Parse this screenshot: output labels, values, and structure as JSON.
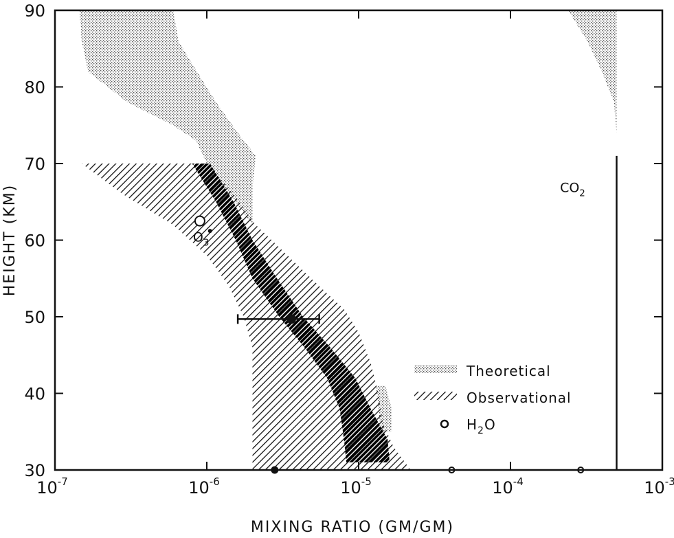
{
  "chart_data": {
    "type": "area",
    "title": "",
    "xlabel": "MIXING RATIO (GM/GM)",
    "ylabel": "HEIGHT (KM)",
    "xscale": "log",
    "xlim": [
      1e-07,
      0.001
    ],
    "ylim": [
      30,
      90
    ],
    "grid": false,
    "legend_position": "lower-right",
    "x_ticks": [
      {
        "value": 1e-07,
        "base": "10",
        "exp": "-7"
      },
      {
        "value": 1e-06,
        "base": "10",
        "exp": "-6"
      },
      {
        "value": 1e-05,
        "base": "10",
        "exp": "-5"
      },
      {
        "value": 0.0001,
        "base": "10",
        "exp": "-4"
      },
      {
        "value": 0.001,
        "base": "10",
        "exp": "-3"
      }
    ],
    "y_ticks": [
      {
        "value": 30,
        "label": "30"
      },
      {
        "value": 40,
        "label": "40"
      },
      {
        "value": 50,
        "label": "50"
      },
      {
        "value": 60,
        "label": "60"
      },
      {
        "value": 70,
        "label": "70"
      },
      {
        "value": 80,
        "label": "80"
      },
      {
        "value": 90,
        "label": "90"
      }
    ],
    "legend": [
      {
        "name": "Theoretical",
        "pattern": "dots"
      },
      {
        "name": "Observational",
        "pattern": "hatch"
      },
      {
        "name": "H2O",
        "base": "H",
        "sub": "2",
        "rest": "O",
        "marker": "open-circle"
      }
    ],
    "series": [
      {
        "name": "Theoretical",
        "kind": "band",
        "pattern": "dots",
        "left": [
          [
            90,
            1.45e-07
          ],
          [
            86,
            1.5e-07
          ],
          [
            82,
            1.65e-07
          ],
          [
            78,
            3e-07
          ],
          [
            75,
            6e-07
          ],
          [
            73,
            8.5e-07
          ],
          [
            70,
            1e-06
          ]
        ],
        "right": [
          [
            90,
            6e-07
          ],
          [
            86,
            6.5e-07
          ],
          [
            83,
            8e-07
          ],
          [
            78,
            1.15e-06
          ],
          [
            74,
            1.6e-06
          ],
          [
            71,
            2.1e-06
          ],
          [
            67,
            2e-06
          ],
          [
            62,
            2e-06
          ]
        ]
      },
      {
        "name": "Theoretical",
        "kind": "band",
        "pattern": "dots",
        "left": [
          [
            41,
            1.3e-05
          ],
          [
            35,
            1.4e-05
          ]
        ],
        "right": [
          [
            41,
            1.5e-05
          ],
          [
            38,
            1.65e-05
          ],
          [
            35,
            1.65e-05
          ]
        ]
      },
      {
        "name": "Theoretical",
        "kind": "band",
        "pattern": "dots",
        "left": [
          [
            90,
            0.00024
          ],
          [
            86,
            0.00032
          ],
          [
            82,
            0.0004
          ],
          [
            78,
            0.00048
          ],
          [
            74,
            0.0005
          ],
          [
            71,
            0.0005
          ]
        ],
        "right": [
          [
            90,
            0.0005
          ],
          [
            71,
            0.0005
          ]
        ]
      },
      {
        "name": "Observational",
        "kind": "band",
        "pattern": "hatch",
        "left": [
          [
            70,
            1.5e-07
          ],
          [
            66,
            2.8e-07
          ],
          [
            62,
            6e-07
          ],
          [
            58,
            1e-06
          ],
          [
            54,
            1.4e-06
          ],
          [
            50,
            1.75e-06
          ],
          [
            46,
            2e-06
          ],
          [
            42,
            2e-06
          ],
          [
            38,
            2e-06
          ],
          [
            34,
            2e-06
          ],
          [
            30,
            2e-06
          ]
        ],
        "right": [
          [
            70,
            1e-06
          ],
          [
            66,
            1.5e-06
          ],
          [
            62,
            2.1e-06
          ],
          [
            58,
            3.4e-06
          ],
          [
            54,
            5.5e-06
          ],
          [
            51,
            8e-06
          ],
          [
            48,
            1e-05
          ],
          [
            44,
            1.2e-05
          ],
          [
            40,
            1.35e-05
          ],
          [
            36,
            1.45e-05
          ],
          [
            33,
            1.7e-05
          ],
          [
            30,
            2.2e-05
          ]
        ]
      },
      {
        "name": "Observational (dense)",
        "kind": "band",
        "pattern": "hatch-dense",
        "left": [
          [
            70,
            8e-07
          ],
          [
            65,
            1.15e-06
          ],
          [
            60,
            1.55e-06
          ],
          [
            55,
            2e-06
          ],
          [
            50,
            3e-06
          ],
          [
            46,
            4.4e-06
          ],
          [
            42,
            6.2e-06
          ],
          [
            38,
            7.5e-06
          ],
          [
            34,
            8e-06
          ],
          [
            31,
            8.3e-06
          ]
        ],
        "right": [
          [
            70,
            1.05e-06
          ],
          [
            65,
            1.5e-06
          ],
          [
            60,
            2e-06
          ],
          [
            55,
            2.9e-06
          ],
          [
            50,
            4.3e-06
          ],
          [
            46,
            6.5e-06
          ],
          [
            42,
            9.5e-06
          ],
          [
            38,
            1.2e-05
          ],
          [
            34,
            1.55e-05
          ],
          [
            31,
            1.6e-05
          ]
        ]
      },
      {
        "name": "H2O",
        "kind": "points",
        "marker": "open-circle",
        "points": [
          {
            "x": 9e-07,
            "y": 62.5,
            "r": 7
          },
          {
            "x": 4.1e-05,
            "y": 30,
            "r": 4
          },
          {
            "x": 0.00029,
            "y": 30,
            "r": 4
          }
        ]
      },
      {
        "name": "filled points",
        "kind": "points",
        "marker": "filled-circle",
        "points": [
          {
            "x": 2.8e-06,
            "y": 30,
            "r": 5
          },
          {
            "x": 1.05e-06,
            "y": 61.2,
            "r": 2.5
          }
        ]
      },
      {
        "name": "measurement",
        "kind": "errorbar",
        "x": 3.6e-06,
        "y": 49.7,
        "xerr": [
          1.6e-06,
          5.5e-06
        ]
      },
      {
        "name": "CO2",
        "kind": "vline",
        "x": 0.0005,
        "y_range": [
          30,
          71
        ]
      }
    ],
    "annotations": [
      {
        "text_base": "O",
        "text_sub": "3",
        "x": 9e-07,
        "y": 62.5
      },
      {
        "text_base": "CO",
        "text_sub": "2",
        "x": 0.000155,
        "y": 67
      }
    ]
  }
}
